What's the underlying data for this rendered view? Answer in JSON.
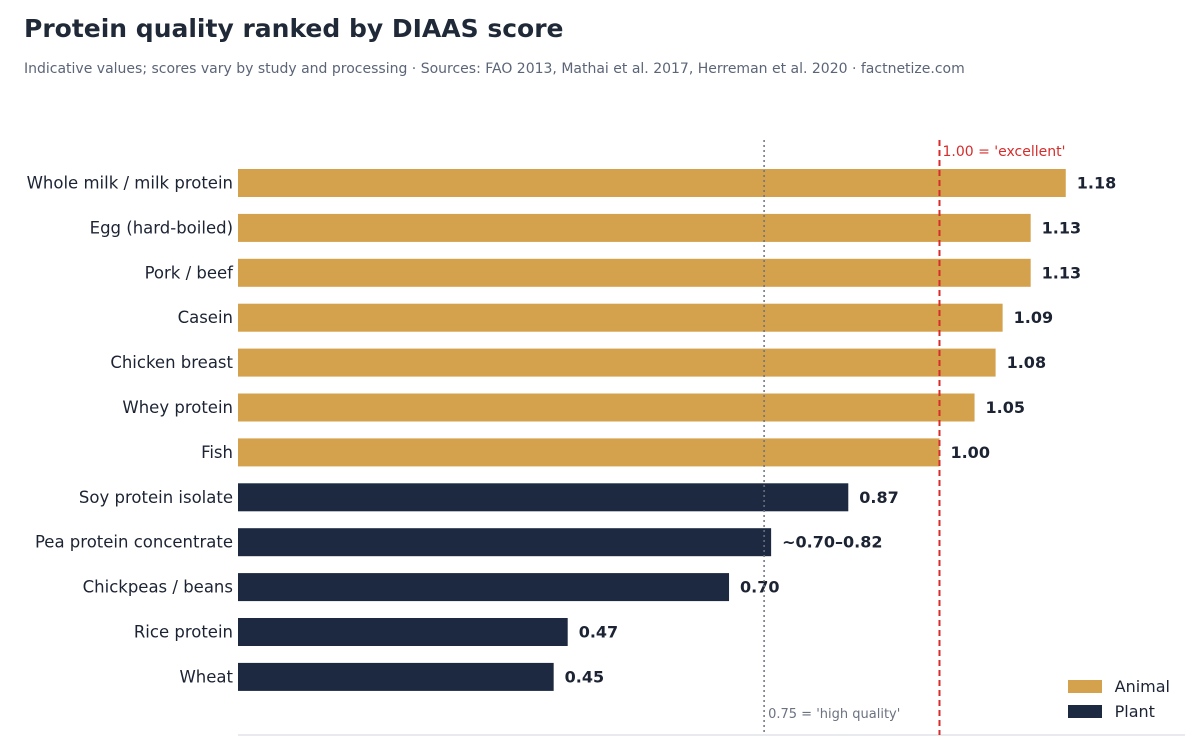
{
  "chart_data": {
    "type": "bar",
    "orientation": "horizontal",
    "title": "Protein quality ranked by DIAAS score",
    "subtitle": "Indicative values; scores vary by study and processing  ·  Sources: FAO 2013, Mathai et al. 2017, Herreman et al. 2020  ·  factnetize.com",
    "xlim": [
      0,
      1.35
    ],
    "categories": [
      "Whole milk / milk protein",
      "Egg (hard-boiled)",
      "Pork / beef",
      "Casein",
      "Chicken breast",
      "Whey protein",
      "Fish",
      "Soy protein isolate",
      "Pea protein concentrate",
      "Chickpeas / beans",
      "Rice protein",
      "Wheat"
    ],
    "values": [
      1.18,
      1.13,
      1.13,
      1.09,
      1.08,
      1.05,
      1.0,
      0.87,
      0.76,
      0.7,
      0.47,
      0.45
    ],
    "value_labels": [
      "1.18",
      "1.13",
      "1.13",
      "1.09",
      "1.08",
      "1.05",
      "1.00",
      "0.87",
      "~0.70–0.82",
      "0.70",
      "0.47",
      "0.45"
    ],
    "groups": [
      "Animal",
      "Animal",
      "Animal",
      "Animal",
      "Animal",
      "Animal",
      "Animal",
      "Plant",
      "Plant",
      "Plant",
      "Plant",
      "Plant"
    ],
    "series": [
      {
        "name": "Animal",
        "color": "#d4a14c"
      },
      {
        "name": "Plant",
        "color": "#1c2940"
      }
    ],
    "reference_lines": [
      {
        "value": 1.0,
        "label": "1.00 = 'excellent'",
        "color": "#d62c2c",
        "style": "dashed"
      },
      {
        "value": 0.75,
        "label": "0.75 = 'high quality'",
        "color": "#6b7280",
        "style": "dotted"
      }
    ],
    "legend": {
      "position": "bottom-right"
    },
    "grid": false
  }
}
